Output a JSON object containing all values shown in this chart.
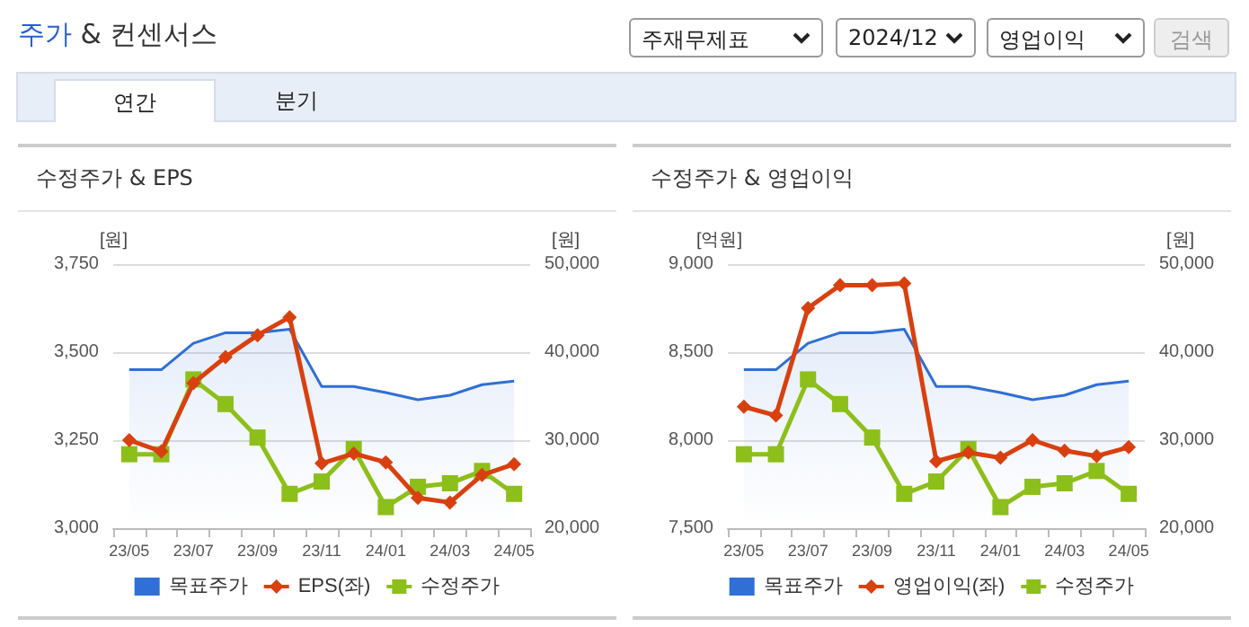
{
  "chart_data": [
    {
      "type": "other",
      "title": "주가 & 컨센서스",
      "annotations": [
        "주재무제표",
        "2024/12",
        "영업이익",
        "검색",
        "연간",
        "분기"
      ]
    },
    {
      "type": "line",
      "title": "수정주가 & EPS",
      "ylabel": "[원]",
      "y2label": "[원]",
      "categories": [
        "23/05",
        null,
        "23/07",
        null,
        "23/09",
        null,
        "23/11",
        null,
        "24/01",
        null,
        "24/03",
        null,
        "24/05"
      ],
      "series": [
        {
          "name": "목표주가",
          "type": "area",
          "axis": "y2",
          "marker": "none",
          "color": "#2f6fd6",
          "values": [
            38000,
            38000,
            41000,
            42200,
            42200,
            42600,
            36100,
            36100,
            35400,
            34600,
            35100,
            36300,
            36700
          ]
        },
        {
          "name": "EPS(좌)",
          "type": "line",
          "marker": "diamond",
          "color": "#d9400f",
          "values": [
            3250,
            3218,
            3412,
            3486,
            3548,
            3599,
            3184,
            3212,
            3187,
            3086,
            3073,
            3151,
            3182
          ]
        },
        {
          "name": "수정주가",
          "type": "line",
          "axis": "y2",
          "marker": "square",
          "color": "#8dbf1a",
          "values": [
            28400,
            28400,
            36900,
            34100,
            30300,
            23900,
            25300,
            29000,
            22400,
            24700,
            25100,
            26500,
            23900
          ]
        }
      ],
      "ylim": [
        3000,
        3750
      ],
      "yticks": [
        {
          "value": 3000,
          "label": "3,000"
        },
        {
          "value": 3250,
          "label": "3,250"
        },
        {
          "value": 3500,
          "label": "3,500"
        },
        {
          "value": 3750,
          "label": "3,750"
        }
      ],
      "y2lim": [
        20000,
        50000
      ],
      "y2ticks": [
        {
          "value": 20000,
          "label": "20,000"
        },
        {
          "value": 30000,
          "label": "30,000"
        },
        {
          "value": 40000,
          "label": "40,000"
        },
        {
          "value": 50000,
          "label": "50,000"
        }
      ],
      "grid": "y",
      "legend": "bottom"
    },
    {
      "type": "line",
      "title": "수정주가 & 영업이익",
      "ylabel": "[억원]",
      "y2label": "[원]",
      "categories": [
        "23/05",
        null,
        "23/07",
        null,
        "23/09",
        null,
        "23/11",
        null,
        "24/01",
        null,
        "24/03",
        null,
        "24/05"
      ],
      "series": [
        {
          "name": "목표주가",
          "type": "area",
          "axis": "y2",
          "marker": "none",
          "color": "#2f6fd6",
          "values": [
            38000,
            38000,
            41000,
            42200,
            42200,
            42600,
            36100,
            36100,
            35400,
            34600,
            35100,
            36300,
            36700
          ]
        },
        {
          "name": "영업이익(좌)",
          "type": "line",
          "marker": "diamond",
          "color": "#d9400f",
          "values": [
            8190,
            8140,
            8750,
            8880,
            8880,
            8890,
            7880,
            7930,
            7900,
            8000,
            7940,
            7910,
            7960
          ]
        },
        {
          "name": "수정주가",
          "type": "line",
          "axis": "y2",
          "marker": "square",
          "color": "#8dbf1a",
          "values": [
            28400,
            28400,
            36900,
            34100,
            30300,
            23900,
            25300,
            29000,
            22400,
            24700,
            25100,
            26500,
            23900
          ]
        }
      ],
      "ylim": [
        7500,
        9000
      ],
      "yticks": [
        {
          "value": 7500,
          "label": "7,500"
        },
        {
          "value": 8000,
          "label": "8,000"
        },
        {
          "value": 8500,
          "label": "8,500"
        },
        {
          "value": 9000,
          "label": "9,000"
        }
      ],
      "y2lim": [
        20000,
        50000
      ],
      "y2ticks": [
        {
          "value": 20000,
          "label": "20,000"
        },
        {
          "value": 30000,
          "label": "30,000"
        },
        {
          "value": 40000,
          "label": "40,000"
        },
        {
          "value": 50000,
          "label": "50,000"
        }
      ],
      "grid": "y",
      "legend": "bottom"
    }
  ]
}
